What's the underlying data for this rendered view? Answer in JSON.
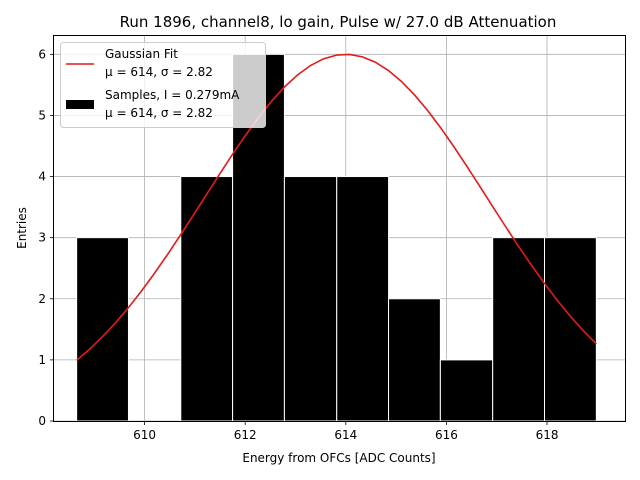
{
  "chart_data": {
    "type": "bar",
    "title": "Run 1896, channel8, lo gain, Pulse w/ 27.0 dB Attenuation",
    "xlabel": "Energy from OFCs [ADC Counts]",
    "ylabel": "Entries",
    "xlim": [
      608.2,
      619.55
    ],
    "ylim": [
      0,
      6.3
    ],
    "xticks": [
      610,
      612,
      614,
      616,
      618
    ],
    "yticks": [
      0,
      1,
      2,
      3,
      4,
      5,
      6
    ],
    "grid": true,
    "legend_position": "top-left",
    "histogram": {
      "name": "Samples, I = 0.279mA",
      "stats": "μ = 614, σ = 2.82",
      "color": "#000000",
      "edge_color": "#ffffff",
      "bins": [
        {
          "x0": 608.65,
          "x1": 609.68,
          "count": 3
        },
        {
          "x0": 609.68,
          "x1": 610.72,
          "count": 0
        },
        {
          "x0": 610.72,
          "x1": 611.75,
          "count": 4
        },
        {
          "x0": 611.75,
          "x1": 612.78,
          "count": 6
        },
        {
          "x0": 612.78,
          "x1": 613.82,
          "count": 4
        },
        {
          "x0": 613.82,
          "x1": 614.85,
          "count": 4
        },
        {
          "x0": 614.85,
          "x1": 615.88,
          "count": 2
        },
        {
          "x0": 615.88,
          "x1": 616.92,
          "count": 1
        },
        {
          "x0": 616.92,
          "x1": 617.95,
          "count": 3
        },
        {
          "x0": 617.95,
          "x1": 618.98,
          "count": 3
        }
      ]
    },
    "fit": {
      "name": "Gaussian Fit",
      "stats": "μ = 614, σ = 2.82",
      "color": "#e31a1c",
      "mu": 614.0,
      "sigma": 2.82,
      "amplitude": 6.0,
      "x_range": [
        608.65,
        618.98
      ]
    }
  }
}
